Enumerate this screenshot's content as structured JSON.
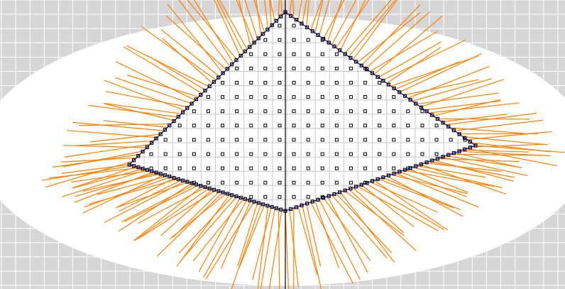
{
  "diagram": {
    "description_free": true,
    "colors": {
      "background": "#d6d6d6",
      "grid_line": "#ffffff",
      "region": "#ffffff",
      "ray": "#ff8000",
      "boundary": "#1010b0",
      "node": "#000000",
      "axis": "#000000"
    },
    "grid": {
      "shown": true
    },
    "boundary_vertices": {
      "top": [
        0,
        2.45
      ],
      "right": [
        1.0,
        0
      ],
      "bottom": [
        0,
        -1.2
      ],
      "left": [
        -0.82,
        -0.35
      ]
    },
    "node_spacing": 0.15,
    "ray_count": 180,
    "vertical_axis": true,
    "icons": [
      "boundary-polygon",
      "interior-node",
      "normal-ray"
    ]
  }
}
